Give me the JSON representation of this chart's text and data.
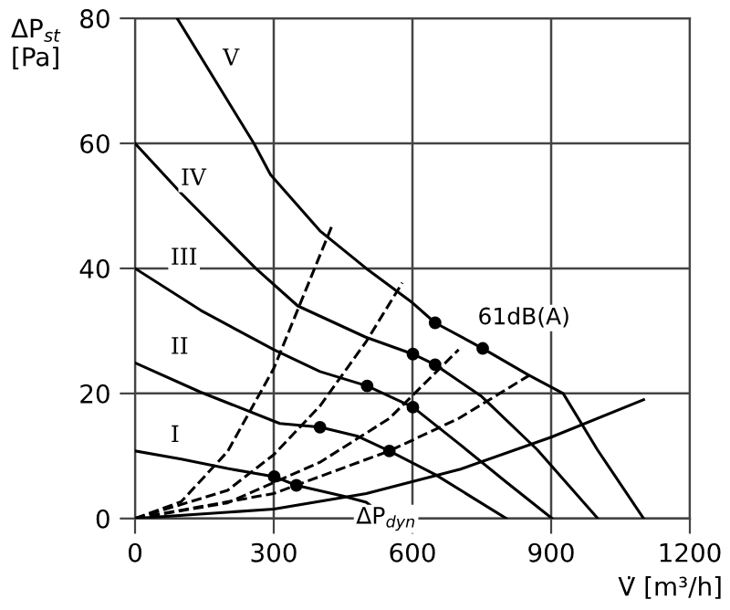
{
  "chart_data": {
    "type": "line",
    "ylabel": "ΔP$_{st}$\n[Pa]",
    "xlabel": "V̇ [m³/h]",
    "xlim": [
      0,
      1200
    ],
    "ylim": [
      0,
      80
    ],
    "xticks": [
      0,
      300,
      600,
      900,
      1200
    ],
    "yticks": [
      0,
      20,
      40,
      60,
      80
    ],
    "grid": true,
    "marker": "none",
    "series": [
      {
        "color": "#000000",
        "x": [
          0,
          100,
          200,
          301,
          349,
          450,
          500,
          546
        ],
        "values": [
          10.8,
          9.5,
          8,
          6.7,
          5.3,
          3.6,
          2.6,
          0
        ]
      },
      {
        "color": "#000000",
        "x": [
          0,
          142,
          313,
          400,
          480,
          550,
          650,
          803
        ],
        "values": [
          24.9,
          20.2,
          15.2,
          14.6,
          13.2,
          10.8,
          7,
          0
        ]
      },
      {
        "color": "#000000",
        "x": [
          0,
          142,
          300,
          400,
          502,
          601,
          700,
          800,
          902
        ],
        "values": [
          40,
          33.3,
          27,
          23.5,
          21.2,
          17.8,
          12,
          6,
          0
        ]
      },
      {
        "color": "#000000",
        "x": [
          0,
          100,
          261,
          352,
          499,
          601,
          649,
          750,
          870,
          1001
        ],
        "values": [
          60,
          52,
          40,
          34,
          29,
          26.3,
          24.6,
          19.5,
          11,
          0
        ]
      },
      {
        "color": "#000000",
        "x": [
          91,
          257,
          293,
          400,
          500,
          600,
          649,
          752,
          850,
          926,
          1000,
          1100
        ],
        "values": [
          80,
          60,
          55,
          46,
          40,
          34.5,
          31.3,
          27.2,
          23,
          20,
          11,
          0
        ]
      },
      {
        "color": "#000000",
        "line_style": "dashed",
        "x": [
          0,
          100,
          200,
          300,
          427
        ],
        "values": [
          0,
          2.7,
          10.7,
          24,
          47
        ]
      },
      {
        "color": "#000000",
        "line_style": "dashed",
        "x": [
          0,
          200,
          300,
          400,
          500,
          578
        ],
        "values": [
          0,
          4.5,
          10.2,
          18,
          28.3,
          37.7
        ]
      },
      {
        "color": "#000000",
        "line_style": "dashed",
        "x": [
          0,
          200,
          400,
          550,
          700
        ],
        "values": [
          0,
          2.5,
          9,
          16,
          27
        ]
      },
      {
        "color": "#000000",
        "line_style": "dashed",
        "x": [
          0,
          300,
          550,
          700,
          855
        ],
        "values": [
          0,
          4,
          10.8,
          16,
          23
        ]
      },
      {
        "color": "#000000",
        "x": [
          0,
          300,
          500,
          704,
          900,
          1100
        ],
        "values": [
          0,
          1.5,
          4,
          7.9,
          13,
          19
        ]
      },
      {
        "type": "scatter",
        "marker": "circle",
        "color": "#000000",
        "x": [
          301,
          349,
          400,
          550,
          502,
          601,
          601,
          649,
          649,
          752
        ],
        "values": [
          6.7,
          5.3,
          14.6,
          10.8,
          21.2,
          17.8,
          26.3,
          24.6,
          31.3,
          27.2
        ]
      }
    ],
    "annotations": [
      "I",
      "II",
      "III",
      "IV",
      "V",
      "61dB(A)",
      "ΔP$_{dyn}$"
    ]
  }
}
